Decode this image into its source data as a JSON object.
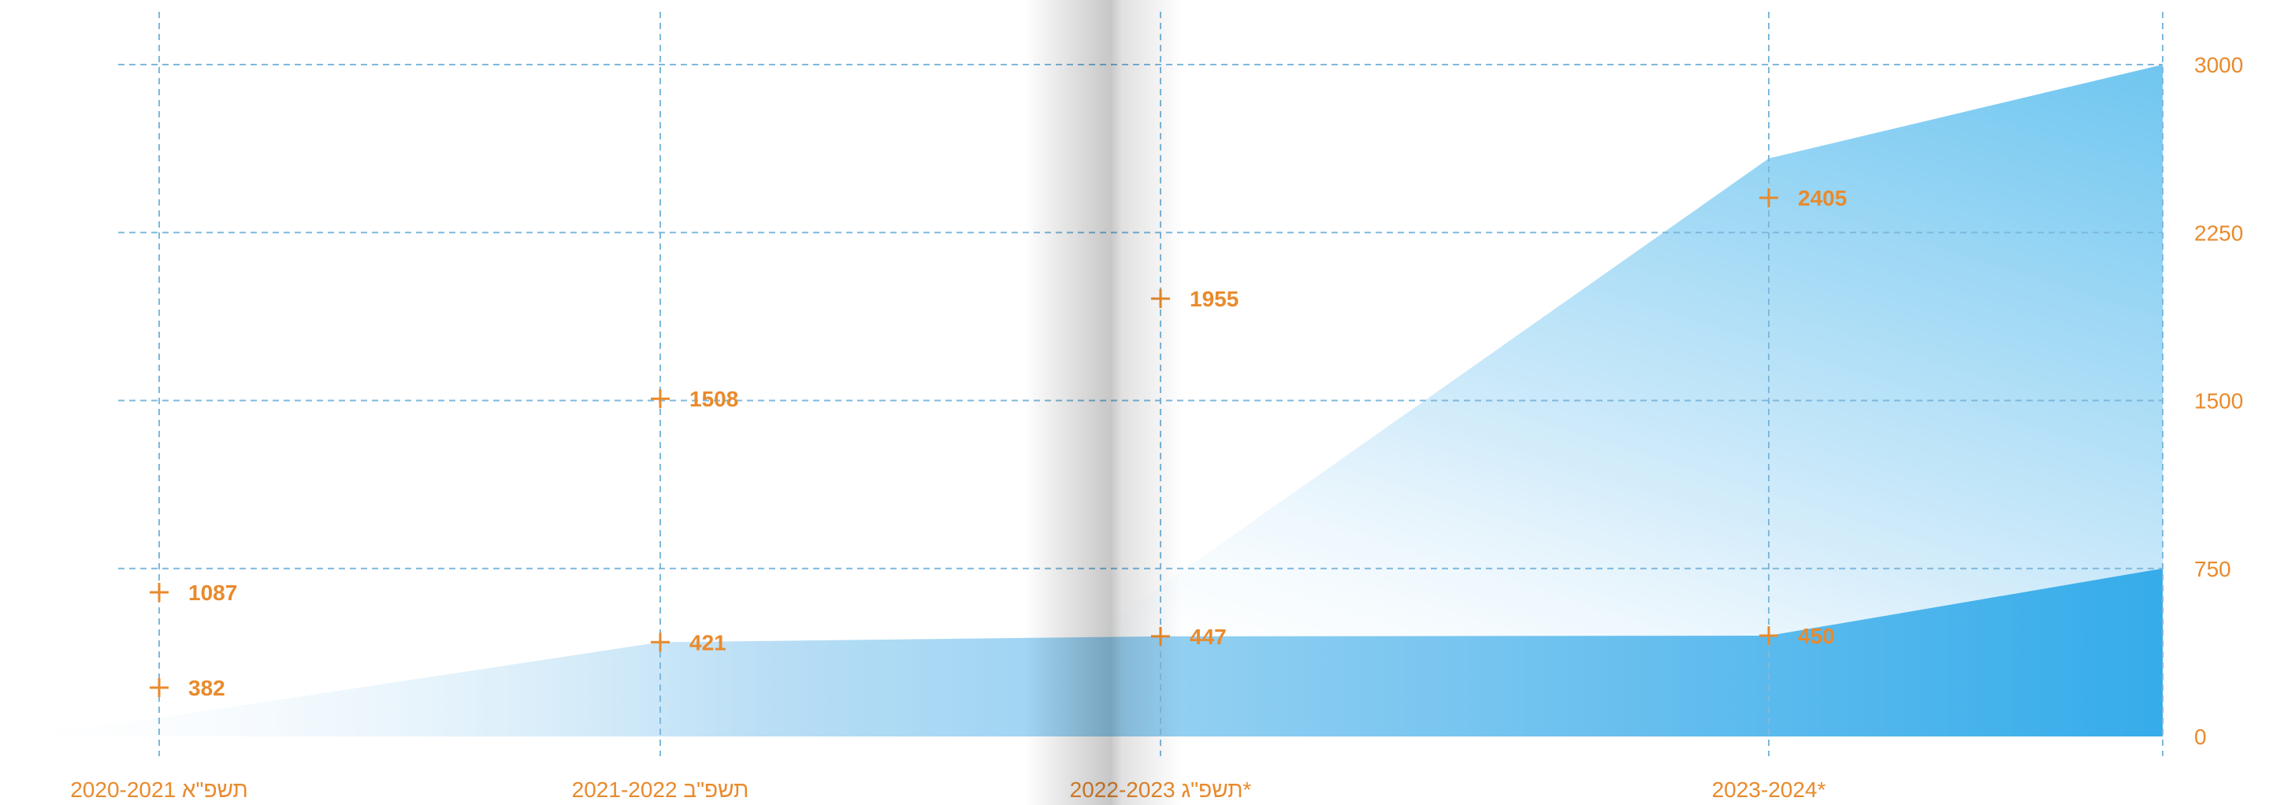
{
  "chart_data": {
    "type": "area",
    "categories": [
      "תשפ\"א 2020-2021",
      "תשפ\"ב 2021-2022",
      "*תשפ\"ג 2022-2023",
      "2023-2024*"
    ],
    "series": [
      {
        "values": [
          1087,
          1508,
          1955,
          2405
        ],
        "color": "#d6ecfa"
      },
      {
        "values": [
          382,
          421,
          447,
          450
        ],
        "color": "#3baeea"
      }
    ],
    "y_ticks": [
      0,
      750,
      1500,
      2250,
      3000
    ],
    "y_tick_labels": [
      "0",
      "750",
      "1500",
      "2250",
      "3000"
    ],
    "ylim": [
      0,
      3000
    ],
    "y_axis_side": "right",
    "grid": true,
    "title": "",
    "xlabel": "",
    "ylabel": "",
    "colors": {
      "label": "#e98a2c",
      "grid": "#7fb8dc",
      "area_light": "#e3f2fc",
      "area_dark": "#35acea"
    }
  }
}
